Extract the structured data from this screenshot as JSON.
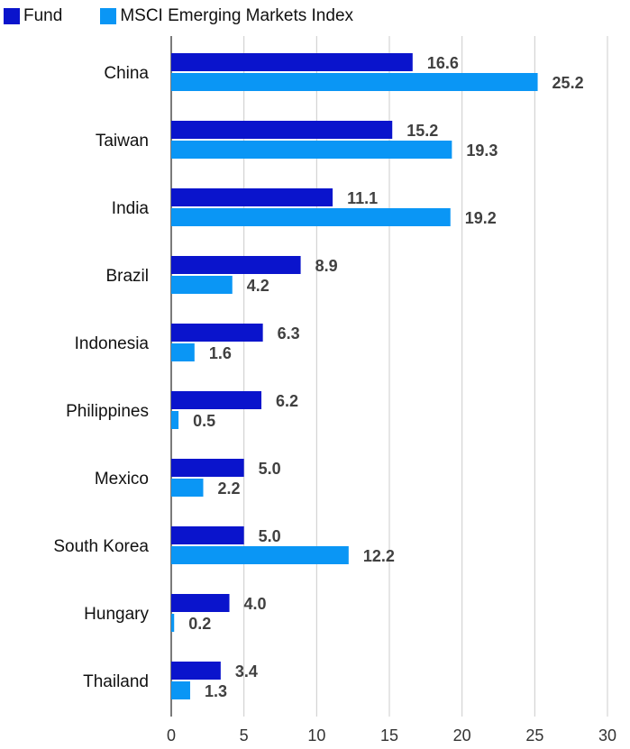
{
  "chart_data": {
    "type": "bar",
    "orientation": "horizontal",
    "categories": [
      "China",
      "Taiwan",
      "India",
      "Brazil",
      "Indonesia",
      "Philippines",
      "Mexico",
      "South Korea",
      "Hungary",
      "Thailand"
    ],
    "series": [
      {
        "name": "Fund",
        "color": "#0a14cc",
        "values": [
          16.6,
          15.2,
          11.1,
          8.9,
          6.3,
          6.2,
          5.0,
          5.0,
          4.0,
          3.4
        ]
      },
      {
        "name": "MSCI Emerging Markets Index",
        "color": "#0a96f5",
        "values": [
          25.2,
          19.3,
          19.2,
          4.2,
          1.6,
          0.5,
          2.2,
          12.2,
          0.2,
          1.3
        ]
      }
    ],
    "xlim": [
      0,
      30
    ],
    "xticks": [
      0,
      5,
      10,
      15,
      20,
      25,
      30
    ],
    "value_format": "1 decimal",
    "grid": true,
    "legend_position": "top-left",
    "title": "",
    "xlabel": "",
    "ylabel": ""
  }
}
